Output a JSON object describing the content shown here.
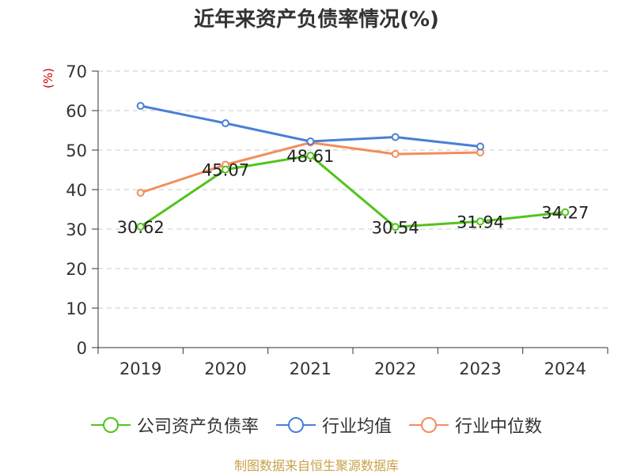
{
  "title": "近年来资产负债率情况(%)",
  "source": "制图数据来自恒生聚源数据库",
  "chart_data": {
    "type": "line",
    "title": "近年来资产负债率情况(%)",
    "ylabel": "(%)",
    "xlabel": "",
    "categories": [
      "2019",
      "2020",
      "2021",
      "2022",
      "2023",
      "2024"
    ],
    "ylim": [
      0,
      70
    ],
    "yticks": [
      0,
      10,
      20,
      30,
      40,
      50,
      60,
      70
    ],
    "grid": true,
    "legend_position": "bottom",
    "series": [
      {
        "name": "公司资产负债率",
        "color": "#52c41a",
        "values": [
          30.62,
          45.07,
          48.61,
          30.54,
          31.94,
          34.27
        ],
        "labels": [
          "30.62",
          "45.07",
          "48.61",
          "30.54",
          "31.94",
          "34.27"
        ]
      },
      {
        "name": "行业均值",
        "color": "#4a7fd4",
        "values": [
          61.2,
          56.8,
          52.2,
          53.3,
          50.9,
          null
        ]
      },
      {
        "name": "行业中位数",
        "color": "#f28e5c",
        "values": [
          39.2,
          46.3,
          51.9,
          49.0,
          49.4,
          null
        ]
      }
    ]
  }
}
